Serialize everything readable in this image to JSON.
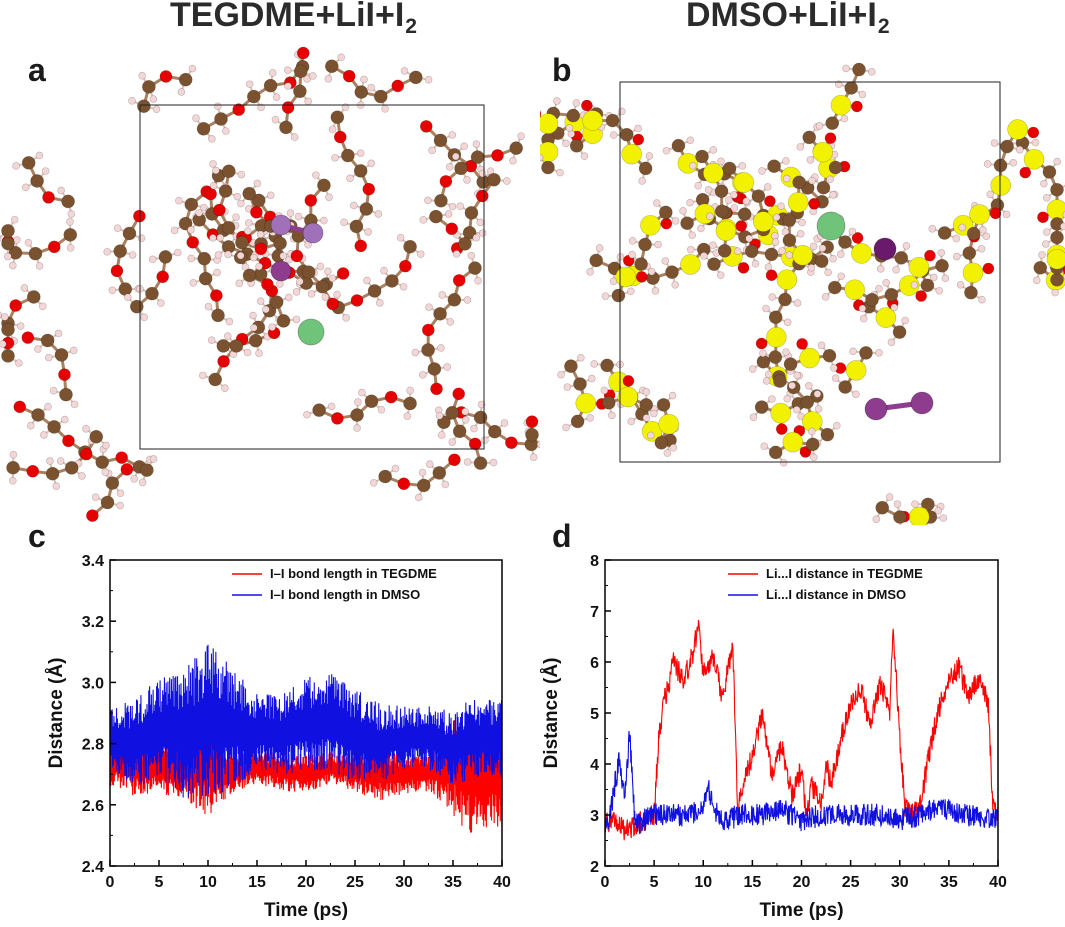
{
  "headers": {
    "a": {
      "main": "TEGDME+LiI+I",
      "sub": "2"
    },
    "b": {
      "main": "DMSO+LiI+I",
      "sub": "2"
    }
  },
  "panel_labels": {
    "a": "a",
    "b": "b",
    "c": "c",
    "d": "d"
  },
  "colors": {
    "oxygen": "#e60000",
    "carbon": "#7a5230",
    "hydrogen": "#f4d6d6",
    "sulfur": "#f2f200",
    "lithium": "#6fc47a",
    "iodine": "#8e3c8e",
    "tegdme_series": "#ff0000",
    "dmso_series": "#1010e0"
  },
  "chart_data": [
    {
      "panel": "c",
      "type": "line",
      "title": "",
      "xlabel": "Time (ps)",
      "ylabel": "Distance (Å)",
      "xlim": [
        0,
        40
      ],
      "ylim": [
        2.4,
        3.4
      ],
      "xticks": [
        0,
        5,
        10,
        15,
        20,
        25,
        30,
        35,
        40
      ],
      "yticks": [
        2.4,
        2.6,
        2.8,
        3.0,
        3.2,
        3.4
      ],
      "ytick_labels": [
        "2.4",
        "2.6",
        "2.8",
        "3.0",
        "3.2",
        "3.4"
      ],
      "legend_position": "top-right",
      "series": [
        {
          "name": "I–I bond length in TEGDME",
          "color": "#ff0000",
          "x": [
            0,
            2.5,
            5,
            7.5,
            10,
            12.5,
            15,
            17.5,
            20,
            22.5,
            25,
            27.5,
            30,
            32.5,
            35,
            36,
            37.5,
            40
          ],
          "y": [
            2.74,
            2.72,
            2.72,
            2.72,
            2.72,
            2.7,
            2.72,
            2.71,
            2.7,
            2.72,
            2.71,
            2.7,
            2.7,
            2.71,
            2.72,
            2.7,
            2.7,
            2.68
          ],
          "spread": [
            0.06,
            0.07,
            0.06,
            0.09,
            0.12,
            0.05,
            0.04,
            0.05,
            0.05,
            0.04,
            0.05,
            0.07,
            0.05,
            0.05,
            0.12,
            0.15,
            0.15,
            0.12
          ]
        },
        {
          "name": "I–I bond length in DMSO",
          "color": "#1010e0",
          "x": [
            0,
            2.5,
            5,
            7.5,
            10,
            12.5,
            15,
            17.5,
            20,
            22.5,
            25,
            27.5,
            30,
            32.5,
            35,
            36,
            37.5,
            40
          ],
          "y": [
            2.82,
            2.8,
            2.85,
            2.83,
            2.88,
            2.85,
            2.84,
            2.83,
            2.86,
            2.87,
            2.83,
            2.8,
            2.82,
            2.82,
            2.78,
            2.8,
            2.82,
            2.82
          ],
          "spread": [
            0.08,
            0.11,
            0.13,
            0.16,
            0.2,
            0.15,
            0.1,
            0.1,
            0.12,
            0.13,
            0.12,
            0.1,
            0.08,
            0.08,
            0.1,
            0.1,
            0.1,
            0.1
          ]
        }
      ]
    },
    {
      "panel": "d",
      "type": "line",
      "title": "",
      "xlabel": "Time (ps)",
      "ylabel": "Distance (Å)",
      "xlim": [
        0,
        40
      ],
      "ylim": [
        2,
        8
      ],
      "xticks": [
        0,
        5,
        10,
        15,
        20,
        25,
        30,
        35,
        40
      ],
      "yticks": [
        2,
        3,
        4,
        5,
        6,
        7,
        8
      ],
      "ytick_labels": [
        "2",
        "3",
        "4",
        "5",
        "6",
        "7",
        "8"
      ],
      "legend_position": "top-right",
      "series": [
        {
          "name": "Li...I distance in TEGDME",
          "color": "#ff0000",
          "x": [
            0,
            1,
            2,
            3,
            4,
            5,
            5.5,
            6,
            7,
            8,
            9,
            9.5,
            10,
            11,
            12,
            13,
            13.5,
            14,
            15,
            16,
            17,
            18,
            19,
            20,
            20.5,
            21,
            22,
            22.5,
            23,
            24,
            25,
            26,
            27,
            28,
            29,
            29.3,
            30,
            30.5,
            31,
            32,
            33,
            34,
            35,
            36,
            37,
            38,
            39,
            39.5,
            40
          ],
          "y": [
            2.8,
            2.9,
            2.7,
            2.8,
            2.9,
            3.0,
            4.6,
            5.2,
            6.0,
            5.6,
            6.2,
            6.7,
            5.8,
            6.1,
            5.3,
            6.4,
            3.2,
            3.5,
            4.2,
            5.0,
            3.8,
            4.4,
            3.4,
            3.9,
            2.9,
            3.6,
            3.2,
            4.0,
            3.6,
            4.5,
            5.2,
            5.5,
            4.8,
            5.6,
            5.0,
            6.8,
            4.5,
            3.2,
            3.0,
            3.1,
            4.2,
            5.1,
            5.6,
            5.9,
            5.3,
            5.7,
            5.2,
            3.1,
            3.0
          ]
        },
        {
          "name": "Li...I distance in DMSO",
          "color": "#1010e0",
          "x": [
            0,
            0.5,
            1,
            1.5,
            2,
            2.5,
            3,
            3.5,
            4,
            5,
            6,
            8,
            10,
            10.5,
            11,
            12,
            14,
            16,
            18,
            20,
            22,
            24,
            26,
            28,
            30,
            32,
            34,
            35,
            36,
            38,
            40
          ],
          "y": [
            2.8,
            3.0,
            3.6,
            4.1,
            3.3,
            4.6,
            3.0,
            2.8,
            2.9,
            3.0,
            3.0,
            3.0,
            3.1,
            3.6,
            3.1,
            2.9,
            3.0,
            3.0,
            3.1,
            2.9,
            3.0,
            3.0,
            3.0,
            3.0,
            2.9,
            3.0,
            3.2,
            3.1,
            3.0,
            3.0,
            2.9
          ]
        }
      ]
    }
  ]
}
